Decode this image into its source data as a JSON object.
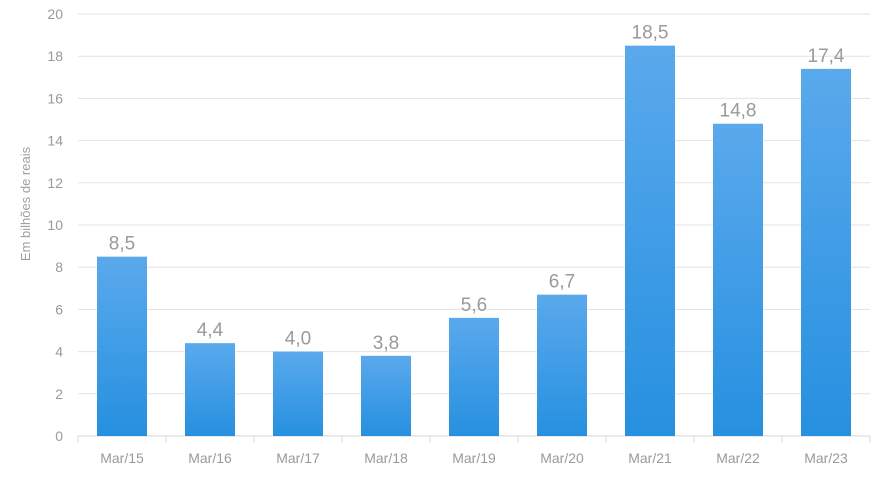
{
  "chart_data": {
    "type": "bar",
    "categories": [
      "Mar/15",
      "Mar/16",
      "Mar/17",
      "Mar/18",
      "Mar/19",
      "Mar/20",
      "Mar/21",
      "Mar/22",
      "Mar/23"
    ],
    "values": [
      8.5,
      4.4,
      4.0,
      3.8,
      5.6,
      6.7,
      18.5,
      14.8,
      17.4
    ],
    "data_labels": [
      "8,5",
      "4,4",
      "4,0",
      "3,8",
      "5,6",
      "6,7",
      "18,5",
      "14,8",
      "17,4"
    ],
    "title": "",
    "xlabel": "",
    "ylabel": "Em bilhões de reais",
    "ylim": [
      0,
      20
    ],
    "yticks": [
      0,
      2,
      4,
      6,
      8,
      10,
      12,
      14,
      16,
      18,
      20
    ],
    "grid": true,
    "legend": "none",
    "colors": {
      "bar_top": "#5aa9ec",
      "bar_bottom": "#2690e0",
      "grid": "#e3e3e3",
      "text": "#9a9a9a"
    }
  }
}
